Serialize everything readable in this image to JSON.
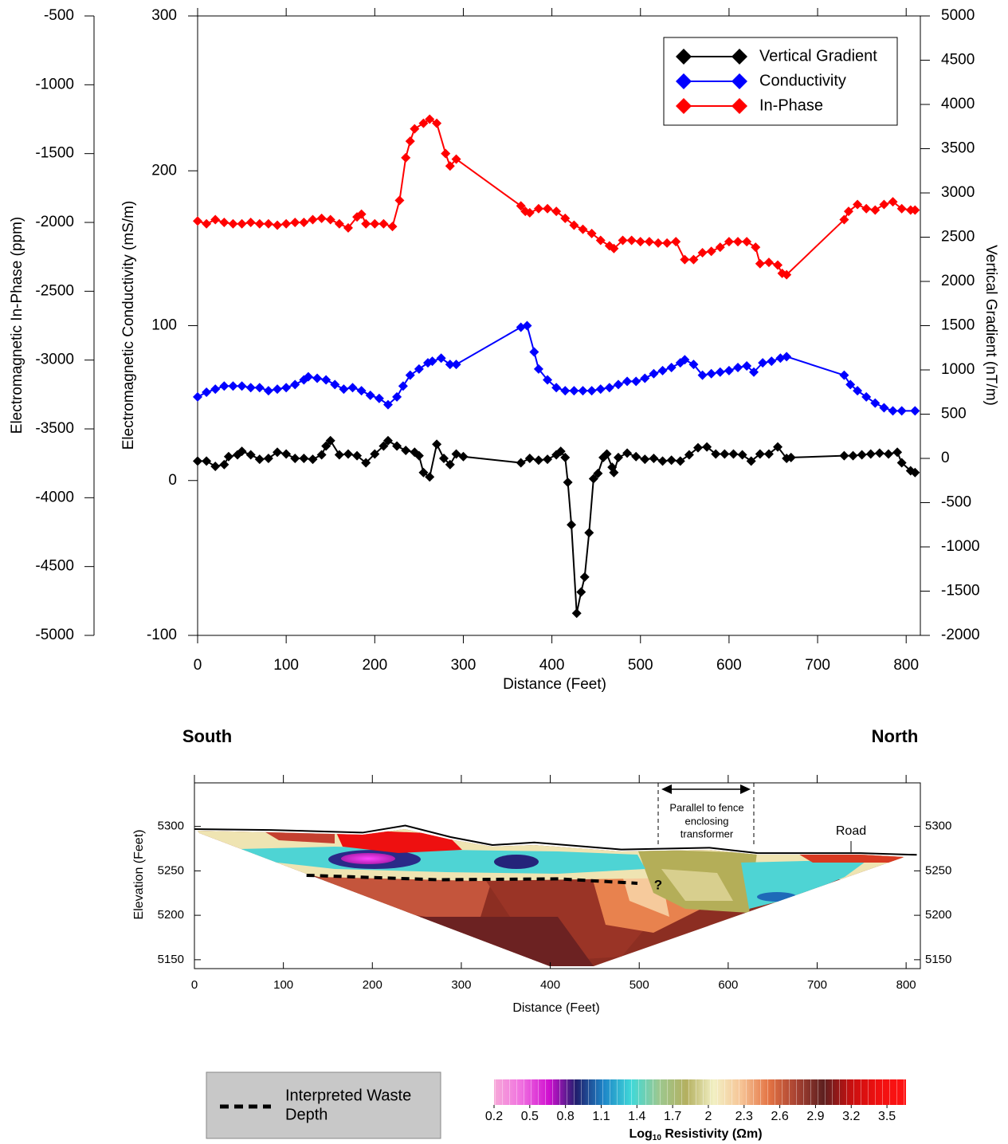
{
  "chart_data": [
    {
      "type": "line",
      "xlabel": "Distance (Feet)",
      "xlim": [
        0,
        816
      ],
      "xticks": [
        0,
        100,
        200,
        300,
        400,
        500,
        600,
        700,
        800
      ],
      "ylabel": "Electromagnetic Conductivity (mS/m)",
      "ylim": [
        -100,
        300
      ],
      "yticks": [
        -100,
        0,
        100,
        200,
        300
      ],
      "y2label": "Vertical Gradient (nT/m)",
      "y2lim": [
        -2000,
        5000
      ],
      "y2ticks": [
        -2000,
        -1500,
        -1000,
        -500,
        0,
        500,
        1000,
        1500,
        2000,
        2500,
        3000,
        3500,
        4000,
        4500,
        5000
      ],
      "y3label": "Electromagnetic In-Phase (ppm)",
      "y3lim": [
        -5000,
        -500
      ],
      "y3ticks": [
        -5000,
        -4500,
        -4000,
        -3500,
        -3000,
        -2500,
        -2000,
        -1500,
        -1000,
        -500
      ],
      "legend": "upper right",
      "series": [
        {
          "name": "Vertical Gradient",
          "color": "#000000",
          "axis": "y2",
          "x": [
            0,
            10,
            20,
            30,
            35,
            45,
            50,
            60,
            70,
            80,
            90,
            100,
            110,
            120,
            130,
            140,
            145,
            150,
            160,
            170,
            180,
            190,
            200,
            210,
            215,
            225,
            235,
            245,
            250,
            255,
            262,
            270,
            278,
            285,
            292,
            300,
            365,
            375,
            385,
            395,
            405,
            410,
            415,
            418,
            422,
            428,
            433,
            437,
            442,
            447,
            452,
            458,
            462,
            468,
            470,
            475,
            485,
            495,
            505,
            515,
            525,
            535,
            545,
            555,
            565,
            575,
            585,
            595,
            605,
            615,
            625,
            635,
            645,
            655,
            665,
            670,
            730,
            740,
            750,
            760,
            770,
            780,
            790,
            795,
            805,
            810
          ],
          "values": [
            -30,
            -30,
            -90,
            -70,
            20,
            40,
            80,
            40,
            -10,
            0,
            70,
            50,
            0,
            0,
            -10,
            40,
            140,
            200,
            40,
            50,
            30,
            -50,
            50,
            140,
            200,
            140,
            90,
            70,
            30,
            -160,
            -210,
            160,
            0,
            -70,
            50,
            20,
            -50,
            0,
            -20,
            -10,
            40,
            80,
            10,
            -270,
            -750,
            -1750,
            -1510,
            -1340,
            -840,
            -230,
            -170,
            10,
            50,
            -100,
            -160,
            10,
            60,
            20,
            -10,
            0,
            -30,
            -20,
            -30,
            40,
            120,
            130,
            50,
            50,
            50,
            40,
            -30,
            50,
            50,
            130,
            0,
            10,
            30,
            30,
            40,
            50,
            60,
            50,
            70,
            -50,
            -140,
            -160
          ]
        },
        {
          "name": "Conductivity",
          "color": "#0000ff",
          "axis": "y",
          "x": [
            0,
            10,
            20,
            30,
            40,
            50,
            60,
            70,
            80,
            90,
            100,
            110,
            120,
            125,
            135,
            145,
            155,
            165,
            175,
            185,
            195,
            205,
            215,
            225,
            232,
            240,
            250,
            260,
            265,
            275,
            285,
            292,
            365,
            372,
            380,
            385,
            395,
            405,
            415,
            425,
            435,
            445,
            455,
            465,
            475,
            485,
            495,
            505,
            515,
            525,
            535,
            545,
            550,
            560,
            570,
            580,
            590,
            600,
            610,
            620,
            628,
            638,
            648,
            658,
            665,
            730,
            737,
            745,
            755,
            765,
            775,
            785,
            795,
            810
          ],
          "values": [
            54,
            57,
            59,
            61,
            61,
            61,
            60,
            60,
            58,
            59,
            60,
            62,
            65,
            67,
            66,
            65,
            62,
            59,
            60,
            58,
            55,
            53,
            49,
            54,
            61,
            68,
            72,
            76,
            77,
            79,
            75,
            75,
            99,
            100,
            83,
            72,
            65,
            60,
            58,
            58,
            58,
            58,
            59,
            60,
            62,
            64,
            64,
            66,
            69,
            71,
            73,
            76,
            78,
            75,
            68,
            69,
            70,
            71,
            73,
            74,
            70,
            76,
            77,
            79,
            80,
            68,
            62,
            58,
            54,
            50,
            47,
            45,
            45,
            45
          ]
        },
        {
          "name": "In-Phase",
          "color": "#ff0000",
          "axis": "y3",
          "x": [
            0,
            10,
            20,
            30,
            40,
            50,
            60,
            70,
            80,
            90,
            100,
            110,
            120,
            130,
            140,
            150,
            160,
            170,
            180,
            185,
            190,
            200,
            210,
            220,
            228,
            235,
            240,
            245,
            255,
            262,
            270,
            280,
            285,
            292,
            365,
            370,
            375,
            385,
            395,
            405,
            415,
            425,
            435,
            445,
            455,
            465,
            470,
            480,
            490,
            500,
            510,
            520,
            530,
            540,
            550,
            560,
            570,
            580,
            590,
            600,
            610,
            620,
            630,
            635,
            645,
            655,
            660,
            665,
            730,
            735,
            745,
            755,
            765,
            775,
            785,
            795,
            805,
            810
          ],
          "values": [
            -1990,
            -2010,
            -1980,
            -2000,
            -2010,
            -2010,
            -2000,
            -2010,
            -2010,
            -2020,
            -2010,
            -2000,
            -2000,
            -1980,
            -1970,
            -1980,
            -2010,
            -2040,
            -1960,
            -1940,
            -2010,
            -2010,
            -2010,
            -2030,
            -1840,
            -1530,
            -1410,
            -1320,
            -1280,
            -1250,
            -1280,
            -1500,
            -1590,
            -1540,
            -1880,
            -1920,
            -1930,
            -1900,
            -1900,
            -1920,
            -1970,
            -2020,
            -2050,
            -2080,
            -2130,
            -2170,
            -2190,
            -2130,
            -2130,
            -2140,
            -2140,
            -2150,
            -2150,
            -2140,
            -2270,
            -2270,
            -2220,
            -2210,
            -2180,
            -2140,
            -2140,
            -2140,
            -2180,
            -2300,
            -2290,
            -2310,
            -2370,
            -2380,
            -1980,
            -1920,
            -1870,
            -1900,
            -1910,
            -1870,
            -1850,
            -1900,
            -1910,
            -1910
          ]
        }
      ]
    },
    {
      "type": "section",
      "left_title": "South",
      "right_title": "North",
      "xlabel": "Distance (Feet)",
      "ylabel": "Elevation (Feet)",
      "xlim": [
        0,
        816
      ],
      "xticks": [
        0,
        100,
        200,
        300,
        400,
        500,
        600,
        700,
        800
      ],
      "ylim": [
        5140,
        5349
      ],
      "yticks": [
        5150,
        5200,
        5250,
        5300
      ],
      "surface": {
        "x": [
          0,
          86,
          189,
          237,
          288,
          335,
          382,
          480,
          579,
          633,
          749,
          812
        ],
        "values": [
          5297,
          5296,
          5293,
          5301,
          5288,
          5279,
          5282,
          5274,
          5276,
          5270,
          5270,
          5268
        ]
      },
      "waste_depth": {
        "x": [
          126,
          274,
          409,
          498
        ],
        "values": [
          5245,
          5240,
          5241,
          5236
        ]
      },
      "fence_note": [
        "Parallel to fence",
        "enclosing",
        "transformer"
      ],
      "road_label": "Road",
      "question_mark": "?",
      "legend": [
        "Interpreted Waste",
        "Depth"
      ],
      "colorbar": {
        "lim": [
          0.2,
          3.66
        ],
        "ticks": [
          0.2,
          0.5,
          0.8,
          1.1,
          1.4,
          1.7,
          2,
          2.3,
          2.6,
          2.9,
          3.2,
          3.5
        ],
        "label": {
          "text": "Log",
          "sub": "10",
          "rest": " Resistivity (Ωm)"
        },
        "colors": [
          "#f7a8d8",
          "#f070e0",
          "#d010d0",
          "#20206e",
          "#1e86c8",
          "#40d8d8",
          "#9cc890",
          "#b4b060",
          "#f2f0c4",
          "#f6c496",
          "#e47444",
          "#a84232",
          "#5e2020",
          "#c81010",
          "#f01010",
          "#ff1414"
        ]
      }
    }
  ]
}
